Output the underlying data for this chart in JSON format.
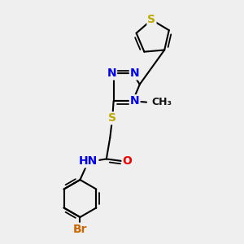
{
  "background_color": "#efefef",
  "bond_color": "#000000",
  "bond_width": 1.5,
  "atom_colors": {
    "N": "#0000ee",
    "S": "#bbaa00",
    "O": "#ee0000",
    "Br": "#cc6600",
    "C": "#000000",
    "H": "#555555"
  },
  "font_size": 10,
  "font_size_small": 9
}
